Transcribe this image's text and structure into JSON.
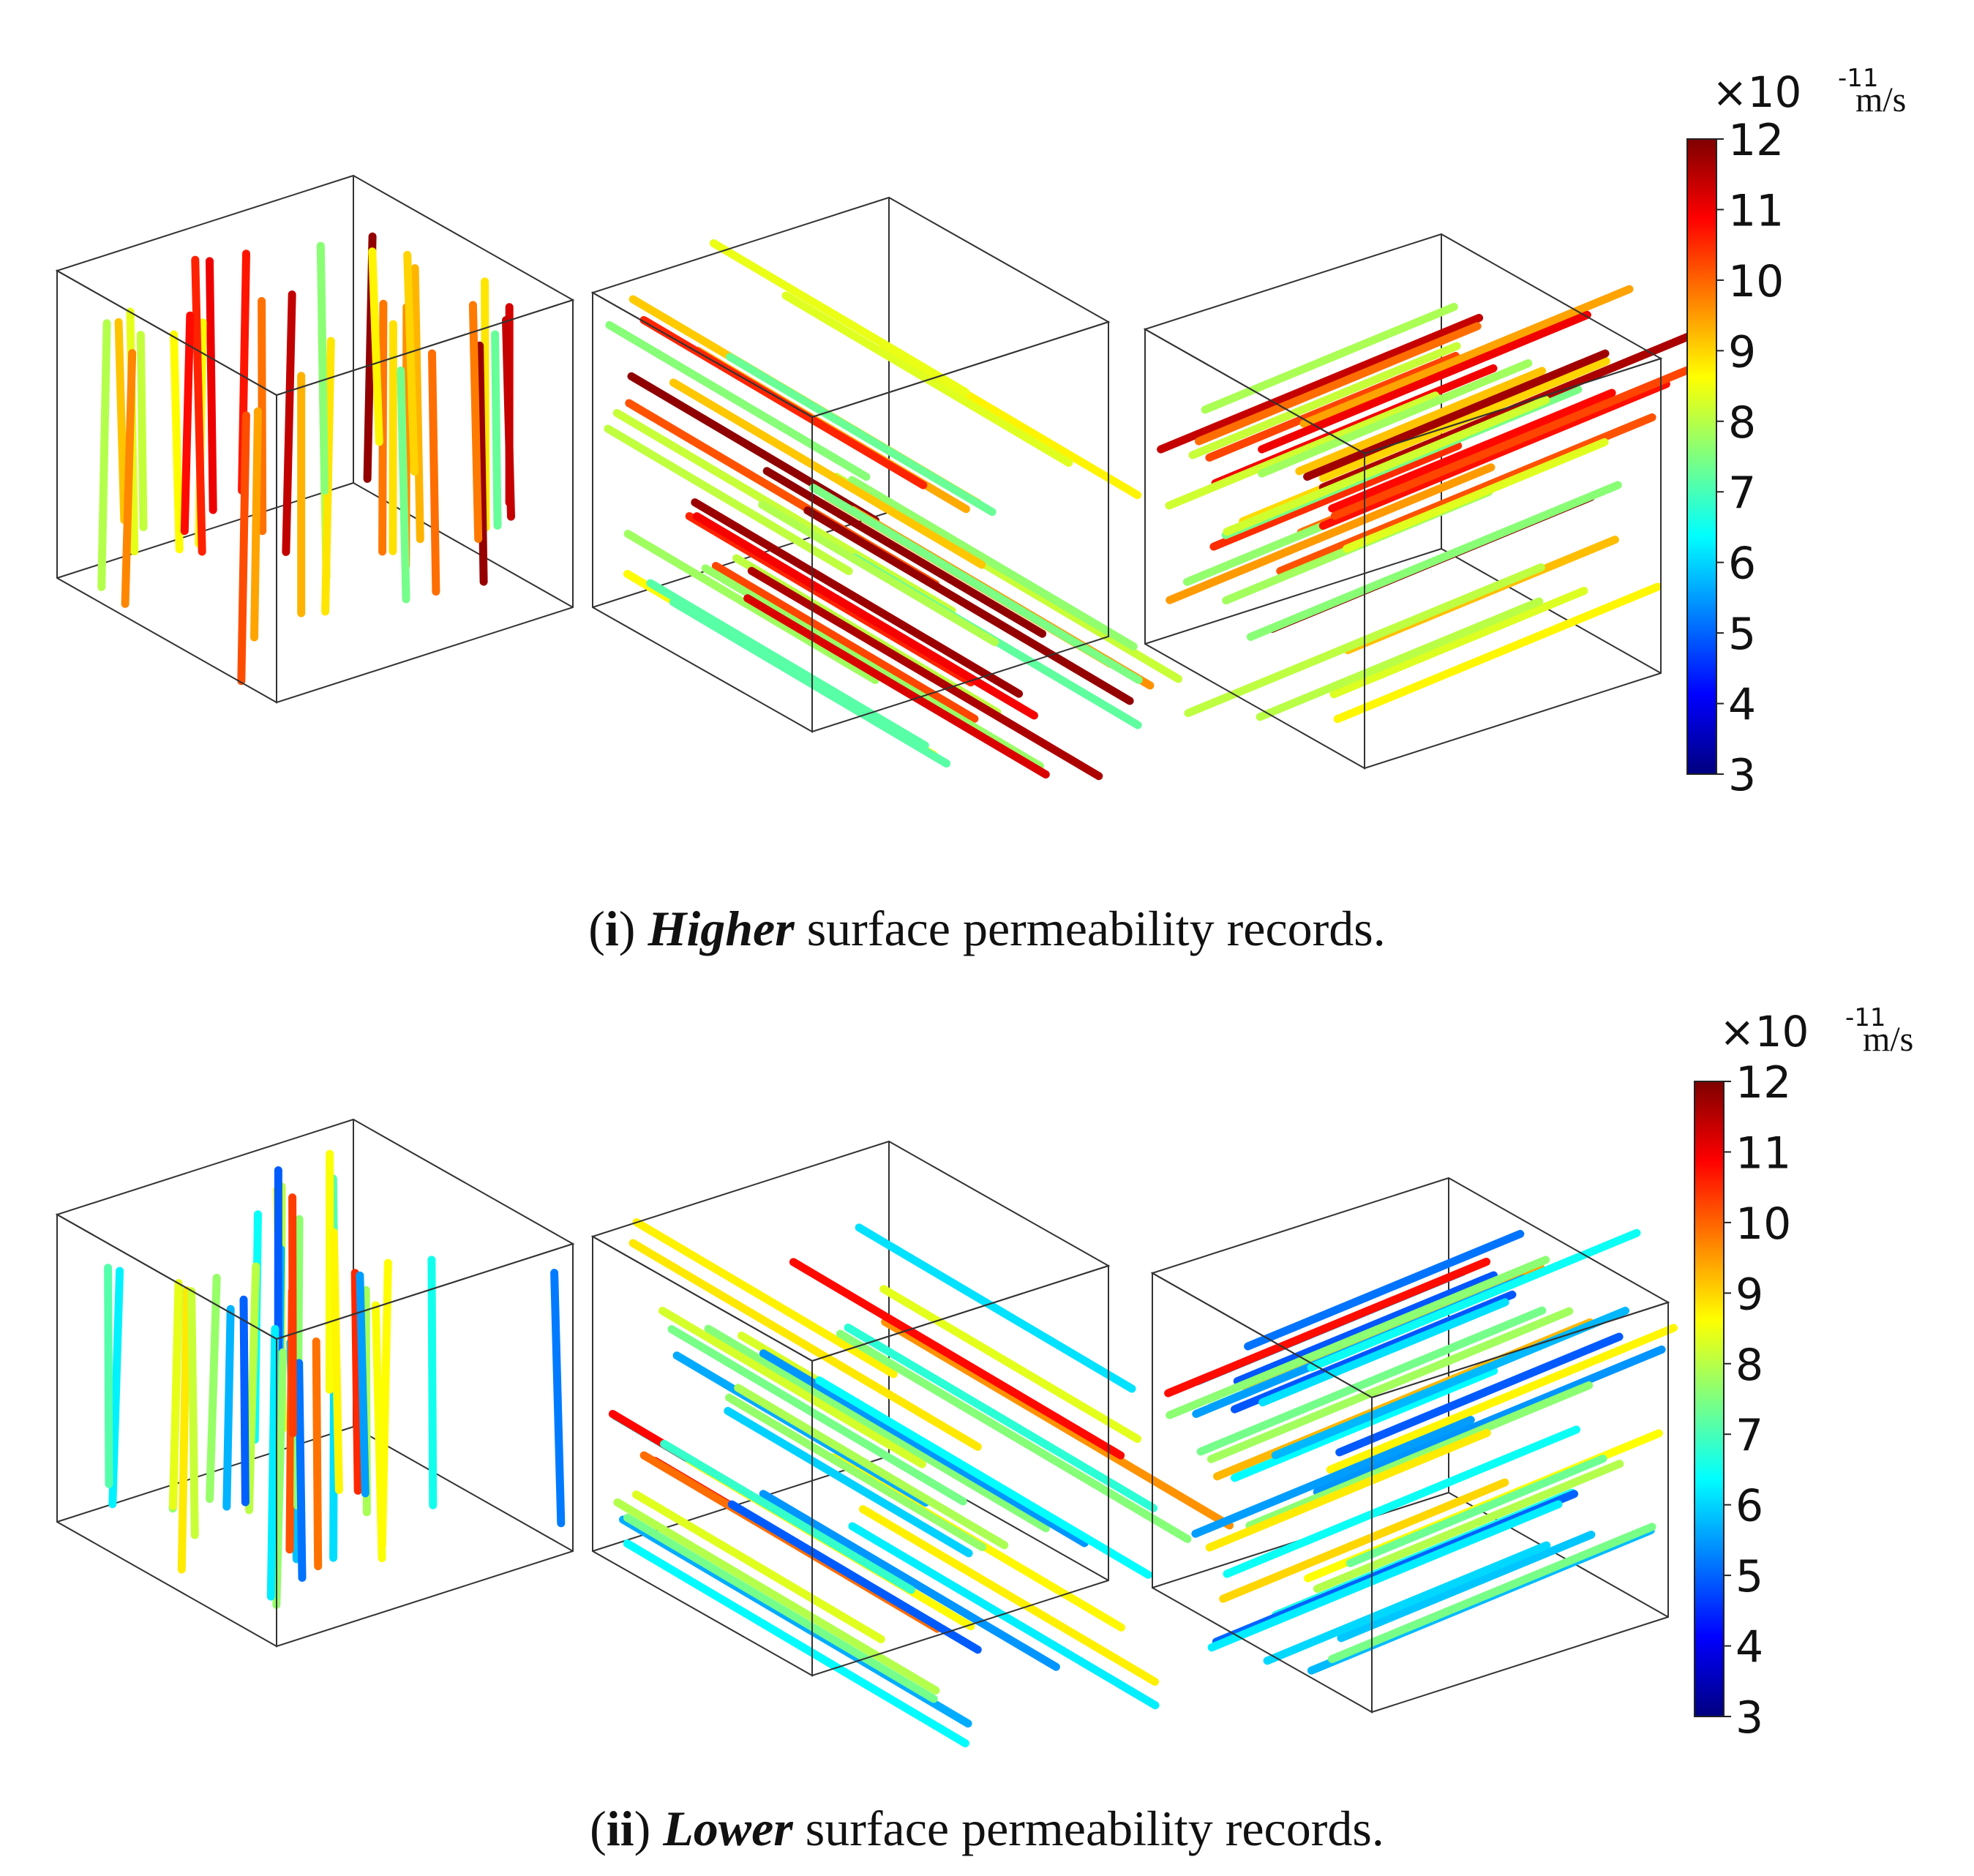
{
  "panels": [
    {
      "id": "i",
      "label": "i",
      "caption_emph": "Higher",
      "caption_rest": " surface permeability records.",
      "unit_prefix": "×10",
      "unit_exp": "-11",
      "unit_suffix": "m/s",
      "colorbar_ticks": [
        "12",
        "11",
        "10",
        "9",
        "8",
        "7",
        "6",
        "5",
        "4",
        "3"
      ],
      "value_range": [
        3,
        12
      ],
      "value_distribution": "high"
    },
    {
      "id": "ii",
      "label": "ii",
      "caption_emph": "Lower",
      "caption_rest": " surface permeability records.",
      "unit_prefix": "×10",
      "unit_exp": "-11",
      "unit_suffix": "m/s",
      "colorbar_ticks": [
        "12",
        "11",
        "10",
        "9",
        "8",
        "7",
        "6",
        "5",
        "4",
        "3"
      ],
      "value_range": [
        3,
        12
      ],
      "value_distribution": "low"
    }
  ],
  "cube_orientations": [
    "vertical",
    "diagonal-down",
    "diagonal-up"
  ],
  "colormap": [
    "#00007f",
    "#0000ff",
    "#007fff",
    "#00ffff",
    "#7fff7f",
    "#ffff00",
    "#ff7f00",
    "#ff0000",
    "#7f0000"
  ]
}
